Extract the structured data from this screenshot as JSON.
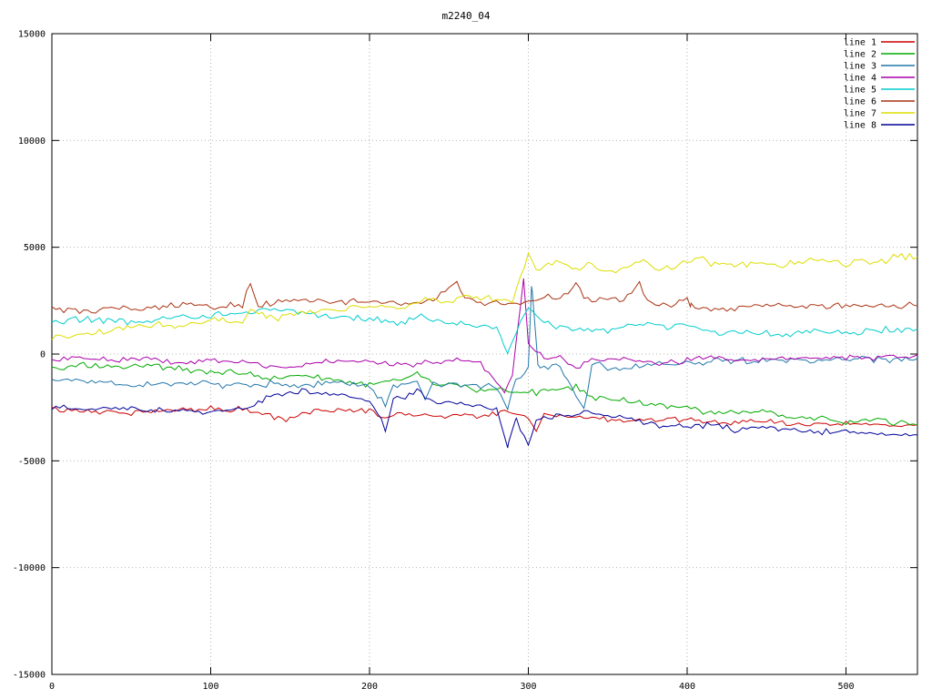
{
  "title": "m2240_04",
  "chart_data": {
    "type": "line",
    "title": "m2240_04",
    "xlabel": "",
    "ylabel": "",
    "xlim": [
      0,
      545
    ],
    "ylim": [
      -15000,
      15000
    ],
    "xticks": [
      0,
      100,
      200,
      300,
      400,
      500
    ],
    "yticks": [
      -15000,
      -10000,
      -5000,
      0,
      5000,
      10000,
      15000
    ],
    "grid": true,
    "legend_position": "top-right",
    "series": [
      {
        "name": "line 1",
        "color": "#cc0000",
        "noise": 160,
        "points": [
          [
            0,
            -2600
          ],
          [
            20,
            -2650
          ],
          [
            40,
            -2750
          ],
          [
            60,
            -2700
          ],
          [
            80,
            -2600
          ],
          [
            100,
            -2550
          ],
          [
            120,
            -2600
          ],
          [
            140,
            -2950
          ],
          [
            150,
            -3100
          ],
          [
            160,
            -2700
          ],
          [
            180,
            -2600
          ],
          [
            200,
            -2700
          ],
          [
            210,
            -2900
          ],
          [
            230,
            -2800
          ],
          [
            250,
            -2900
          ],
          [
            270,
            -2850
          ],
          [
            285,
            -2700
          ],
          [
            300,
            -2950
          ],
          [
            305,
            -3600
          ],
          [
            310,
            -2800
          ],
          [
            320,
            -2900
          ],
          [
            340,
            -3000
          ],
          [
            360,
            -3100
          ],
          [
            380,
            -3050
          ],
          [
            400,
            -3100
          ],
          [
            420,
            -3200
          ],
          [
            440,
            -3150
          ],
          [
            460,
            -3250
          ],
          [
            480,
            -3300
          ],
          [
            500,
            -3250
          ],
          [
            520,
            -3300
          ],
          [
            545,
            -3350
          ]
        ]
      },
      {
        "name": "line 2",
        "color": "#00aa00",
        "noise": 180,
        "points": [
          [
            0,
            -700
          ],
          [
            20,
            -500
          ],
          [
            40,
            -650
          ],
          [
            60,
            -500
          ],
          [
            80,
            -700
          ],
          [
            100,
            -800
          ],
          [
            120,
            -900
          ],
          [
            140,
            -1100
          ],
          [
            160,
            -1000
          ],
          [
            180,
            -1300
          ],
          [
            200,
            -1400
          ],
          [
            220,
            -1200
          ],
          [
            230,
            -900
          ],
          [
            240,
            -1300
          ],
          [
            260,
            -1600
          ],
          [
            280,
            -1700
          ],
          [
            300,
            -1800
          ],
          [
            320,
            -1700
          ],
          [
            330,
            -1500
          ],
          [
            340,
            -2000
          ],
          [
            360,
            -2200
          ],
          [
            380,
            -2400
          ],
          [
            400,
            -2600
          ],
          [
            420,
            -2800
          ],
          [
            440,
            -2700
          ],
          [
            450,
            -2600
          ],
          [
            460,
            -2900
          ],
          [
            480,
            -3000
          ],
          [
            500,
            -3200
          ],
          [
            520,
            -3100
          ],
          [
            545,
            -3300
          ]
        ]
      },
      {
        "name": "line 3",
        "color": "#2277aa",
        "noise": 200,
        "points": [
          [
            0,
            -1150
          ],
          [
            20,
            -1250
          ],
          [
            40,
            -1350
          ],
          [
            60,
            -1450
          ],
          [
            80,
            -1350
          ],
          [
            100,
            -1400
          ],
          [
            120,
            -1500
          ],
          [
            140,
            -1350
          ],
          [
            150,
            -1600
          ],
          [
            160,
            -1450
          ],
          [
            180,
            -1400
          ],
          [
            200,
            -1500
          ],
          [
            210,
            -2300
          ],
          [
            215,
            -1500
          ],
          [
            230,
            -1300
          ],
          [
            235,
            -2100
          ],
          [
            240,
            -1400
          ],
          [
            260,
            -1400
          ],
          [
            280,
            -1500
          ],
          [
            287,
            -2600
          ],
          [
            292,
            -1200
          ],
          [
            300,
            -700
          ],
          [
            302,
            3300
          ],
          [
            306,
            -500
          ],
          [
            320,
            -600
          ],
          [
            335,
            -2600
          ],
          [
            340,
            -500
          ],
          [
            360,
            -700
          ],
          [
            380,
            -500
          ],
          [
            400,
            -400
          ],
          [
            420,
            -300
          ],
          [
            440,
            -350
          ],
          [
            460,
            -250
          ],
          [
            480,
            -300
          ],
          [
            500,
            -200
          ],
          [
            520,
            -250
          ],
          [
            545,
            -200
          ]
        ]
      },
      {
        "name": "line 4",
        "color": "#aa00aa",
        "noise": 160,
        "points": [
          [
            0,
            -250
          ],
          [
            20,
            -150
          ],
          [
            40,
            -300
          ],
          [
            60,
            -200
          ],
          [
            80,
            -500
          ],
          [
            100,
            -300
          ],
          [
            120,
            -400
          ],
          [
            140,
            -600
          ],
          [
            160,
            -500
          ],
          [
            180,
            -300
          ],
          [
            200,
            -350
          ],
          [
            220,
            -500
          ],
          [
            240,
            -400
          ],
          [
            255,
            -300
          ],
          [
            270,
            -400
          ],
          [
            285,
            -1800
          ],
          [
            290,
            -900
          ],
          [
            297,
            3500
          ],
          [
            300,
            500
          ],
          [
            310,
            -200
          ],
          [
            320,
            -100
          ],
          [
            330,
            -700
          ],
          [
            340,
            -300
          ],
          [
            360,
            -200
          ],
          [
            380,
            -400
          ],
          [
            400,
            -300
          ],
          [
            415,
            -150
          ],
          [
            430,
            -300
          ],
          [
            450,
            -200
          ],
          [
            470,
            -250
          ],
          [
            490,
            -150
          ],
          [
            510,
            -200
          ],
          [
            530,
            -150
          ],
          [
            545,
            -150
          ]
        ]
      },
      {
        "name": "line 5",
        "color": "#00cccc",
        "noise": 200,
        "points": [
          [
            0,
            1500
          ],
          [
            20,
            1700
          ],
          [
            40,
            1500
          ],
          [
            60,
            1600
          ],
          [
            80,
            1700
          ],
          [
            100,
            1800
          ],
          [
            120,
            1900
          ],
          [
            140,
            2100
          ],
          [
            160,
            1900
          ],
          [
            180,
            1700
          ],
          [
            200,
            1600
          ],
          [
            220,
            1500
          ],
          [
            230,
            1800
          ],
          [
            240,
            1600
          ],
          [
            260,
            1400
          ],
          [
            270,
            1300
          ],
          [
            280,
            1200
          ],
          [
            287,
            0
          ],
          [
            295,
            1500
          ],
          [
            300,
            2200
          ],
          [
            310,
            1400
          ],
          [
            330,
            1200
          ],
          [
            350,
            1100
          ],
          [
            370,
            1500
          ],
          [
            390,
            1300
          ],
          [
            400,
            1400
          ],
          [
            420,
            900
          ],
          [
            440,
            1000
          ],
          [
            460,
            900
          ],
          [
            480,
            1100
          ],
          [
            500,
            1000
          ],
          [
            520,
            1100
          ],
          [
            545,
            1200
          ]
        ]
      },
      {
        "name": "line 6",
        "color": "#aa3311",
        "noise": 180,
        "points": [
          [
            0,
            2100
          ],
          [
            20,
            2000
          ],
          [
            40,
            2200
          ],
          [
            60,
            2100
          ],
          [
            80,
            2300
          ],
          [
            100,
            2200
          ],
          [
            120,
            2300
          ],
          [
            125,
            3300
          ],
          [
            130,
            2300
          ],
          [
            140,
            2400
          ],
          [
            160,
            2500
          ],
          [
            180,
            2500
          ],
          [
            200,
            2400
          ],
          [
            220,
            2300
          ],
          [
            240,
            2500
          ],
          [
            255,
            3400
          ],
          [
            260,
            2600
          ],
          [
            270,
            2400
          ],
          [
            280,
            2500
          ],
          [
            290,
            2300
          ],
          [
            300,
            2500
          ],
          [
            310,
            2700
          ],
          [
            320,
            2600
          ],
          [
            330,
            3300
          ],
          [
            335,
            2600
          ],
          [
            340,
            2500
          ],
          [
            360,
            2600
          ],
          [
            370,
            3300
          ],
          [
            375,
            2500
          ],
          [
            380,
            2400
          ],
          [
            390,
            2300
          ],
          [
            400,
            2600
          ],
          [
            402,
            2300
          ],
          [
            410,
            2200
          ],
          [
            420,
            2100
          ],
          [
            440,
            2200
          ],
          [
            460,
            2300
          ],
          [
            480,
            2200
          ],
          [
            500,
            2300
          ],
          [
            520,
            2250
          ],
          [
            545,
            2300
          ]
        ]
      },
      {
        "name": "line 7",
        "color": "#dddd00",
        "noise": 200,
        "points": [
          [
            0,
            700
          ],
          [
            20,
            900
          ],
          [
            40,
            1100
          ],
          [
            60,
            1400
          ],
          [
            80,
            1300
          ],
          [
            100,
            1600
          ],
          [
            120,
            1500
          ],
          [
            125,
            2100
          ],
          [
            140,
            1700
          ],
          [
            160,
            1900
          ],
          [
            180,
            2100
          ],
          [
            200,
            2300
          ],
          [
            220,
            2200
          ],
          [
            240,
            2600
          ],
          [
            250,
            2400
          ],
          [
            260,
            2800
          ],
          [
            270,
            2600
          ],
          [
            280,
            2700
          ],
          [
            290,
            2500
          ],
          [
            295,
            3600
          ],
          [
            300,
            4800
          ],
          [
            305,
            3900
          ],
          [
            310,
            4100
          ],
          [
            320,
            4300
          ],
          [
            330,
            4000
          ],
          [
            340,
            4200
          ],
          [
            350,
            3900
          ],
          [
            360,
            4100
          ],
          [
            370,
            4300
          ],
          [
            380,
            4100
          ],
          [
            390,
            4000
          ],
          [
            400,
            4300
          ],
          [
            410,
            4600
          ],
          [
            415,
            4100
          ],
          [
            420,
            4200
          ],
          [
            430,
            4000
          ],
          [
            440,
            4300
          ],
          [
            450,
            4200
          ],
          [
            460,
            4100
          ],
          [
            470,
            4300
          ],
          [
            480,
            4400
          ],
          [
            490,
            4300
          ],
          [
            500,
            4200
          ],
          [
            510,
            4400
          ],
          [
            520,
            4300
          ],
          [
            530,
            4500
          ],
          [
            545,
            4600
          ]
        ]
      },
      {
        "name": "line 8",
        "color": "#000099",
        "noise": 170,
        "points": [
          [
            0,
            -2500
          ],
          [
            20,
            -2600
          ],
          [
            40,
            -2500
          ],
          [
            60,
            -2700
          ],
          [
            80,
            -2600
          ],
          [
            100,
            -2700
          ],
          [
            120,
            -2600
          ],
          [
            140,
            -1900
          ],
          [
            160,
            -1700
          ],
          [
            180,
            -1900
          ],
          [
            200,
            -2100
          ],
          [
            210,
            -3500
          ],
          [
            215,
            -2200
          ],
          [
            230,
            -1700
          ],
          [
            240,
            -2200
          ],
          [
            260,
            -2400
          ],
          [
            280,
            -2600
          ],
          [
            287,
            -4300
          ],
          [
            292,
            -3000
          ],
          [
            300,
            -4200
          ],
          [
            305,
            -3000
          ],
          [
            320,
            -2900
          ],
          [
            340,
            -2700
          ],
          [
            360,
            -3000
          ],
          [
            380,
            -3300
          ],
          [
            400,
            -3400
          ],
          [
            420,
            -3300
          ],
          [
            430,
            -3600
          ],
          [
            440,
            -3400
          ],
          [
            460,
            -3500
          ],
          [
            480,
            -3700
          ],
          [
            500,
            -3600
          ],
          [
            520,
            -3700
          ],
          [
            545,
            -3800
          ]
        ]
      }
    ]
  }
}
